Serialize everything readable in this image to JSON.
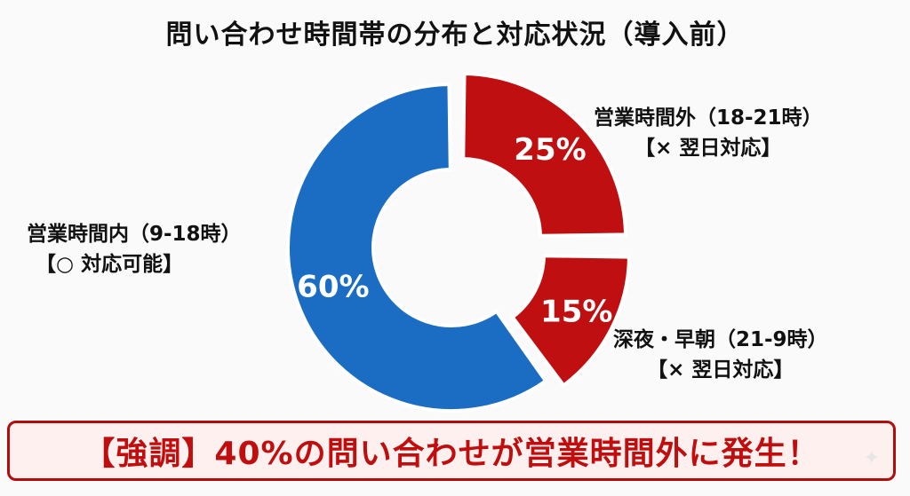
{
  "chart_data": {
    "type": "pie",
    "title": "問い合わせ時間帯の分布と対応状況（導入前）",
    "slices": [
      {
        "label_line1": "営業時間外（18-21時）",
        "label_line2": "【× 翌日対応】",
        "value": 25,
        "value_label": "25%",
        "color": "#c00f10"
      },
      {
        "label_line1": "深夜・早朝（21-9時）",
        "label_line2": "【× 翌日対応】",
        "value": 15,
        "value_label": "15%",
        "color": "#c00f10"
      },
      {
        "label_line1": "営業時間内（9-18時）",
        "label_line2": "【○ 対応可能】",
        "value": 60,
        "value_label": "60%",
        "color": "#1a6dc2"
      }
    ]
  },
  "banner": {
    "text": "【強調】40%の問い合わせが営業時間外に発生！"
  },
  "colors": {
    "accent_red": "#c00f10",
    "accent_blue": "#1a6dc2",
    "banner_border": "#b30c0c",
    "banner_bg": "#fdf0ee"
  }
}
